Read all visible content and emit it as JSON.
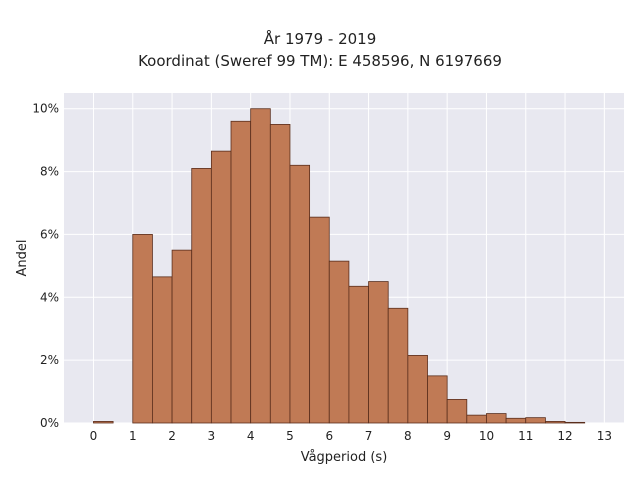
{
  "chart_data": {
    "type": "bar",
    "title_line1": "År 1979 - 2019",
    "title_line2": "Koordinat (Sweref 99 TM): E 458596, N 6197669",
    "xlabel": "Vågperiod (s)",
    "ylabel": "Andel",
    "xlim": [
      -0.75,
      13.5
    ],
    "ylim": [
      0,
      10.5
    ],
    "xticks": [
      "0",
      "1",
      "2",
      "3",
      "4",
      "5",
      "6",
      "7",
      "8",
      "9",
      "10",
      "11",
      "12",
      "13"
    ],
    "yticks": [
      "0%",
      "2%",
      "4%",
      "6%",
      "8%",
      "10%"
    ],
    "ytick_values": [
      0,
      2,
      4,
      6,
      8,
      10
    ],
    "bin_width": 0.5,
    "bins": [
      {
        "x0": 0.0,
        "value": 0.05
      },
      {
        "x0": 0.5,
        "value": 0.0
      },
      {
        "x0": 1.0,
        "value": 6.0
      },
      {
        "x0": 1.5,
        "value": 4.65
      },
      {
        "x0": 2.0,
        "value": 5.5
      },
      {
        "x0": 2.5,
        "value": 8.1
      },
      {
        "x0": 3.0,
        "value": 8.65
      },
      {
        "x0": 3.5,
        "value": 9.6
      },
      {
        "x0": 4.0,
        "value": 10.0
      },
      {
        "x0": 4.5,
        "value": 9.5
      },
      {
        "x0": 5.0,
        "value": 8.2
      },
      {
        "x0": 5.5,
        "value": 6.55
      },
      {
        "x0": 6.0,
        "value": 5.15
      },
      {
        "x0": 6.5,
        "value": 4.35
      },
      {
        "x0": 7.0,
        "value": 4.5
      },
      {
        "x0": 7.5,
        "value": 3.65
      },
      {
        "x0": 8.0,
        "value": 2.15
      },
      {
        "x0": 8.5,
        "value": 1.5
      },
      {
        "x0": 9.0,
        "value": 0.75
      },
      {
        "x0": 9.5,
        "value": 0.25
      },
      {
        "x0": 10.0,
        "value": 0.3
      },
      {
        "x0": 10.5,
        "value": 0.15
      },
      {
        "x0": 11.0,
        "value": 0.17
      },
      {
        "x0": 11.5,
        "value": 0.05
      },
      {
        "x0": 12.0,
        "value": 0.02
      }
    ],
    "grid": true,
    "colors": {
      "bar": "#c07a55",
      "bar_edge": "#5a2e1c",
      "plot_bg": "#e8e8f0",
      "grid": "#ffffff"
    }
  }
}
